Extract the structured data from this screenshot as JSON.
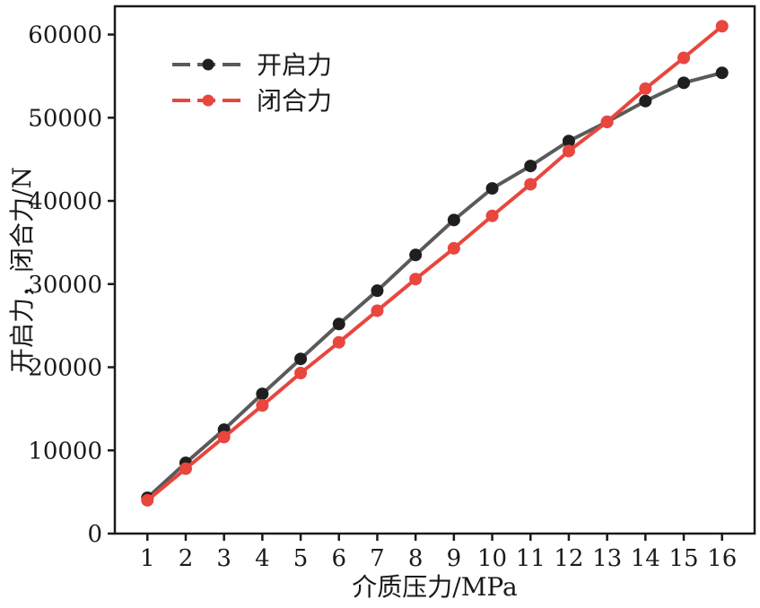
{
  "chart_data": {
    "type": "line",
    "title": "",
    "xlabel": "介质压力/MPa",
    "ylabel": "开启力，闭合力/N",
    "x": [
      1,
      2,
      3,
      4,
      5,
      6,
      7,
      8,
      9,
      10,
      11,
      12,
      13,
      14,
      15,
      16
    ],
    "xticks": [
      1,
      2,
      3,
      4,
      5,
      6,
      7,
      8,
      9,
      10,
      11,
      12,
      13,
      14,
      15,
      16
    ],
    "yticks": [
      0,
      10000,
      20000,
      30000,
      40000,
      50000,
      60000
    ],
    "ylim": [
      0,
      63400
    ],
    "xlim": [
      0.15,
      16.85
    ],
    "grid": false,
    "legend_position": "top-left",
    "series": [
      {
        "name": "开启力",
        "color": "#5a5a5a",
        "marker_color": "#1f1f1f",
        "values": [
          4300,
          8500,
          12500,
          16800,
          21000,
          25200,
          29200,
          33500,
          37700,
          41500,
          44200,
          47200,
          49500,
          52000,
          54200,
          55400
        ]
      },
      {
        "name": "闭合力",
        "color": "#e8463e",
        "marker_color": "#e8463e",
        "values": [
          4000,
          7800,
          11600,
          15400,
          19300,
          23000,
          26800,
          30600,
          34300,
          38200,
          42000,
          46000,
          49500,
          53500,
          57200,
          61000
        ]
      }
    ],
    "frame_color": "#1a1a1a"
  }
}
